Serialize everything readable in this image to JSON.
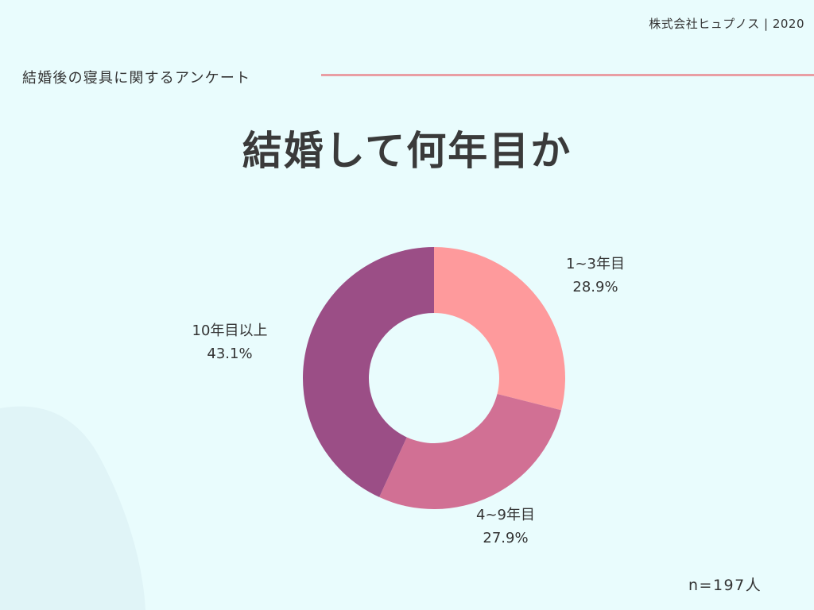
{
  "header": {
    "company": "株式会社ヒュプノス | 2020",
    "survey_title": "結婚後の寝具に関するアンケート"
  },
  "chart_data": {
    "type": "pie",
    "donut": true,
    "title": "結婚して何年目か",
    "categories": [
      "1~3年目",
      "4~9年目",
      "10年目以上"
    ],
    "values": [
      28.9,
      27.9,
      43.1
    ],
    "value_labels": [
      "28.9%",
      "27.9%",
      "43.1%"
    ],
    "colors": [
      "#fe9a9c",
      "#d17094",
      "#9b4e86"
    ],
    "start_angle": "top",
    "direction": "clockwise",
    "legend": "none"
  },
  "footer": {
    "sample_size": "n=197人"
  },
  "colors": {
    "background": "#e9fcfd",
    "accent_line": "#e99ea4",
    "corner_shape": "#e0f4f7"
  }
}
